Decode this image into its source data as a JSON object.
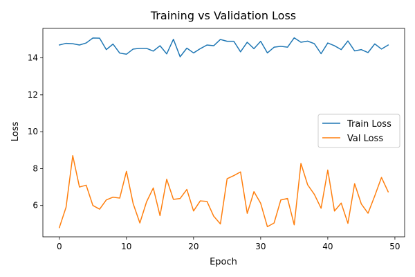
{
  "chart_data": {
    "type": "line",
    "title": "Training vs Validation Loss",
    "xlabel": "Epoch",
    "ylabel": "Loss",
    "xlim": [
      -2.45,
      51.45
    ],
    "ylim": [
      4.3,
      15.6
    ],
    "xticks": [
      0,
      10,
      20,
      30,
      40,
      50
    ],
    "yticks": [
      6,
      8,
      10,
      12,
      14
    ],
    "grid": false,
    "legend_position": "center-right",
    "x": [
      0,
      1,
      2,
      3,
      4,
      5,
      6,
      7,
      8,
      9,
      10,
      11,
      12,
      13,
      14,
      15,
      16,
      17,
      18,
      19,
      20,
      21,
      22,
      23,
      24,
      25,
      26,
      27,
      28,
      29,
      30,
      31,
      32,
      33,
      34,
      35,
      36,
      37,
      38,
      39,
      40,
      41,
      42,
      43,
      44,
      45,
      46,
      47,
      48,
      49
    ],
    "series": [
      {
        "name": "Train Loss",
        "color": "#1f77b4",
        "values": [
          14.7,
          14.79,
          14.77,
          14.7,
          14.81,
          15.08,
          15.07,
          14.45,
          14.75,
          14.26,
          14.2,
          14.48,
          14.52,
          14.52,
          14.37,
          14.66,
          14.22,
          15.01,
          14.06,
          14.53,
          14.27,
          14.5,
          14.7,
          14.66,
          15.0,
          14.9,
          14.9,
          14.33,
          14.85,
          14.5,
          14.9,
          14.27,
          14.58,
          14.63,
          14.58,
          15.09,
          14.85,
          14.91,
          14.77,
          14.23,
          14.81,
          14.66,
          14.45,
          14.92,
          14.38,
          14.45,
          14.29,
          14.76,
          14.48,
          14.7
        ]
      },
      {
        "name": "Val Loss",
        "color": "#ff7f0e",
        "values": [
          4.8,
          5.9,
          8.7,
          7.0,
          7.1,
          6.0,
          5.8,
          6.3,
          6.45,
          6.4,
          7.85,
          6.1,
          5.05,
          6.2,
          6.95,
          5.45,
          7.42,
          6.33,
          6.38,
          6.87,
          5.7,
          6.25,
          6.22,
          5.42,
          5.0,
          7.45,
          7.62,
          7.82,
          5.57,
          6.75,
          6.12,
          4.85,
          5.05,
          6.3,
          6.38,
          4.95,
          8.28,
          7.12,
          6.6,
          5.85,
          7.92,
          5.7,
          6.13,
          5.03,
          7.18,
          6.08,
          5.58,
          6.52,
          7.52,
          6.74
        ]
      }
    ]
  }
}
